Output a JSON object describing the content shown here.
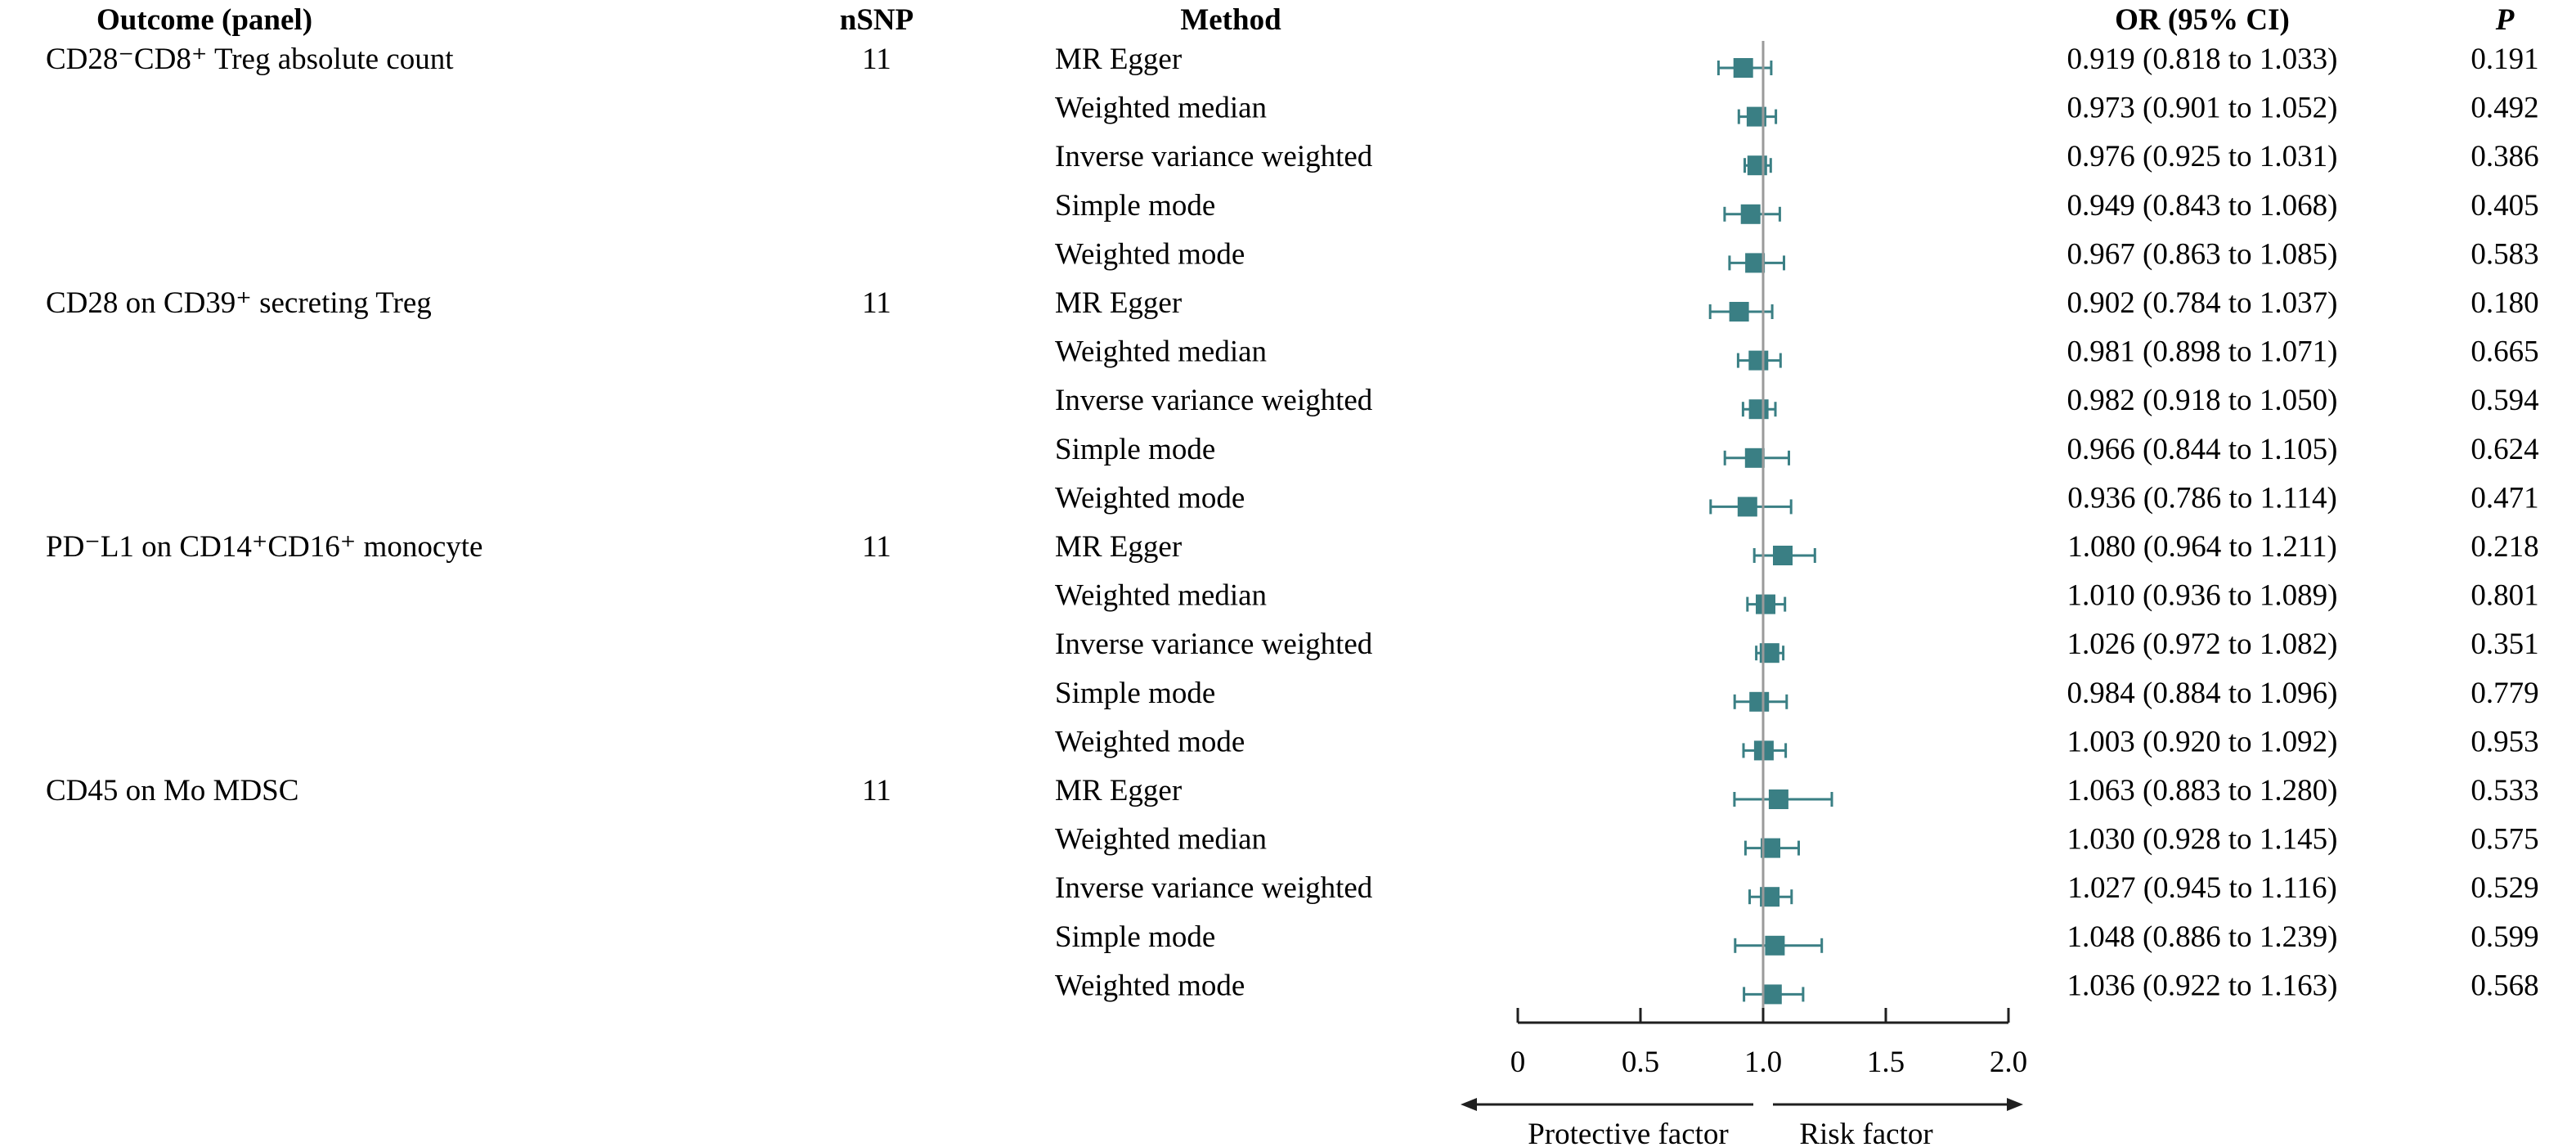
{
  "chart_data": {
    "type": "forest",
    "headers": {
      "outcome": "Outcome (panel)",
      "nsnp": "nSNP",
      "method": "Method",
      "or": "OR (95% CI)",
      "p": "P"
    },
    "xlim": [
      0,
      2.0
    ],
    "xticks": [
      "0",
      "0.5",
      "1.0",
      "1.5",
      "2.0"
    ],
    "xtick_values": [
      0,
      0.5,
      1.0,
      1.5,
      2.0
    ],
    "reference_line": 1.0,
    "direction_labels": {
      "left": "Protective factor",
      "right": "Risk factor"
    },
    "groups": [
      {
        "outcome": "CD28⁻CD8⁺ Treg absolute count",
        "nsnp": "11",
        "rows": [
          {
            "method": "MR Egger",
            "or": 0.919,
            "lo": 0.818,
            "hi": 1.033,
            "or_text": "0.919 (0.818 to 1.033)",
            "p": "0.191"
          },
          {
            "method": "Weighted median",
            "or": 0.973,
            "lo": 0.901,
            "hi": 1.052,
            "or_text": "0.973 (0.901 to 1.052)",
            "p": "0.492"
          },
          {
            "method": "Inverse variance weighted",
            "or": 0.976,
            "lo": 0.925,
            "hi": 1.031,
            "or_text": "0.976 (0.925 to 1.031)",
            "p": "0.386"
          },
          {
            "method": "Simple mode",
            "or": 0.949,
            "lo": 0.843,
            "hi": 1.068,
            "or_text": "0.949 (0.843 to 1.068)",
            "p": "0.405"
          },
          {
            "method": "Weighted mode",
            "or": 0.967,
            "lo": 0.863,
            "hi": 1.085,
            "or_text": "0.967 (0.863 to 1.085)",
            "p": "0.583"
          }
        ]
      },
      {
        "outcome": "CD28 on CD39⁺ secreting Treg",
        "nsnp": "11",
        "rows": [
          {
            "method": "MR Egger",
            "or": 0.902,
            "lo": 0.784,
            "hi": 1.037,
            "or_text": "0.902 (0.784 to 1.037)",
            "p": "0.180"
          },
          {
            "method": "Weighted median",
            "or": 0.981,
            "lo": 0.898,
            "hi": 1.071,
            "or_text": "0.981 (0.898 to 1.071)",
            "p": "0.665"
          },
          {
            "method": "Inverse variance weighted",
            "or": 0.982,
            "lo": 0.918,
            "hi": 1.05,
            "or_text": "0.982 (0.918 to 1.050)",
            "p": "0.594"
          },
          {
            "method": "Simple mode",
            "or": 0.966,
            "lo": 0.844,
            "hi": 1.105,
            "or_text": "0.966 (0.844 to 1.105)",
            "p": "0.624"
          },
          {
            "method": "Weighted mode",
            "or": 0.936,
            "lo": 0.786,
            "hi": 1.114,
            "or_text": "0.936 (0.786 to 1.114)",
            "p": "0.471"
          }
        ]
      },
      {
        "outcome": "PD⁻L1 on CD14⁺CD16⁺ monocyte",
        "nsnp": "11",
        "rows": [
          {
            "method": "MR Egger",
            "or": 1.08,
            "lo": 0.964,
            "hi": 1.211,
            "or_text": "1.080 (0.964 to 1.211)",
            "p": "0.218"
          },
          {
            "method": "Weighted median",
            "or": 1.01,
            "lo": 0.936,
            "hi": 1.089,
            "or_text": "1.010 (0.936 to 1.089)",
            "p": "0.801"
          },
          {
            "method": "Inverse variance weighted",
            "or": 1.026,
            "lo": 0.972,
            "hi": 1.082,
            "or_text": "1.026 (0.972 to 1.082)",
            "p": "0.351"
          },
          {
            "method": "Simple mode",
            "or": 0.984,
            "lo": 0.884,
            "hi": 1.096,
            "or_text": "0.984 (0.884 to 1.096)",
            "p": "0.779"
          },
          {
            "method": "Weighted mode",
            "or": 1.003,
            "lo": 0.92,
            "hi": 1.092,
            "or_text": "1.003 (0.920 to 1.092)",
            "p": "0.953"
          }
        ]
      },
      {
        "outcome": "CD45 on Mo MDSC",
        "nsnp": "11",
        "rows": [
          {
            "method": "MR Egger",
            "or": 1.063,
            "lo": 0.883,
            "hi": 1.28,
            "or_text": "1.063 (0.883 to 1.280)",
            "p": "0.533"
          },
          {
            "method": "Weighted median",
            "or": 1.03,
            "lo": 0.928,
            "hi": 1.145,
            "or_text": "1.030 (0.928 to 1.145)",
            "p": "0.575"
          },
          {
            "method": "Inverse variance weighted",
            "or": 1.027,
            "lo": 0.945,
            "hi": 1.116,
            "or_text": "1.027 (0.945 to 1.116)",
            "p": "0.529"
          },
          {
            "method": "Simple mode",
            "or": 1.048,
            "lo": 0.886,
            "hi": 1.239,
            "or_text": "1.048 (0.886 to 1.239)",
            "p": "0.599"
          },
          {
            "method": "Weighted mode",
            "or": 1.036,
            "lo": 0.922,
            "hi": 1.163,
            "or_text": "1.036 (0.922 to 1.163)",
            "p": "0.568"
          }
        ]
      }
    ],
    "colors": {
      "marker": "#3a7f84",
      "ci": "#3a7f84",
      "reference": "#9a9a9a",
      "axis": "#1f1f1f",
      "text": "#1f1f1f"
    }
  }
}
